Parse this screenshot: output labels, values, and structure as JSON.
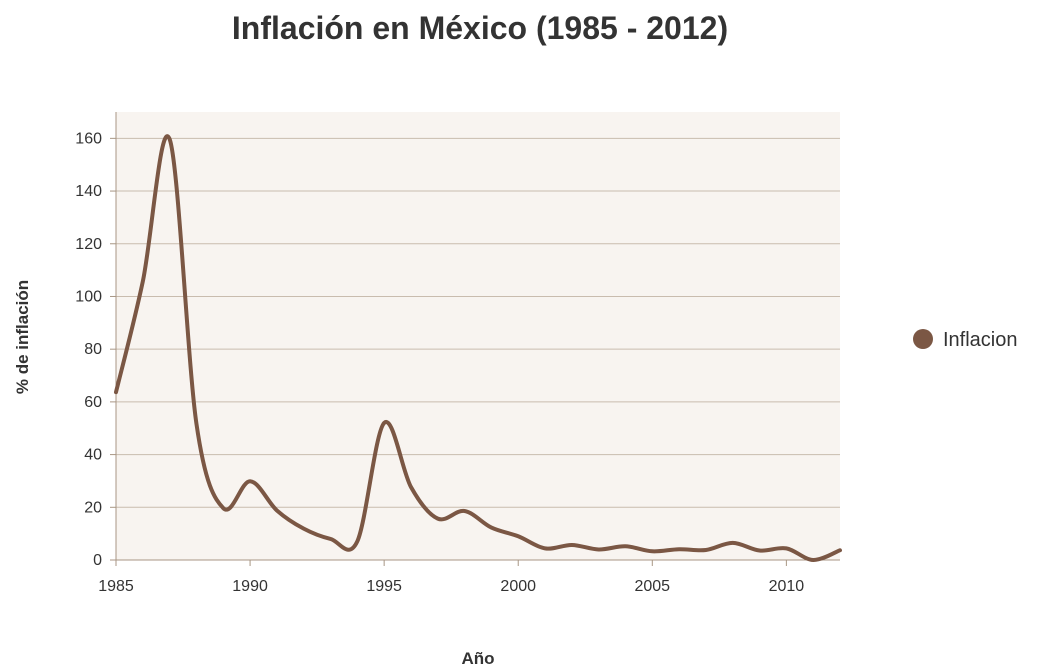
{
  "chart_data": {
    "type": "line",
    "title": "Inflación en México (1985 - 2012)",
    "xlabel": "Año",
    "ylabel": "% de inflación",
    "xlim": [
      1985,
      2012
    ],
    "ylim": [
      0,
      170
    ],
    "x_ticks": [
      1985,
      1990,
      1995,
      2000,
      2005,
      2010
    ],
    "y_ticks": [
      0,
      20,
      40,
      60,
      80,
      100,
      120,
      140,
      160
    ],
    "grid": true,
    "legend_position": "right",
    "colors": {
      "series": "#7b5744",
      "plot_bg": "#f8f4f0",
      "grid": "#c9bcae",
      "axis": "#a89684"
    },
    "series": [
      {
        "name": "Inflacion",
        "x": [
          1985,
          1986,
          1987,
          1988,
          1989,
          1990,
          1991,
          1992,
          1993,
          1994,
          1995,
          1996,
          1997,
          1998,
          1999,
          2000,
          2001,
          2002,
          2003,
          2004,
          2005,
          2006,
          2007,
          2008,
          2009,
          2010,
          2011,
          2012
        ],
        "values": [
          63.7,
          105.7,
          159.7,
          51.7,
          19.7,
          29.9,
          18.8,
          11.9,
          8.0,
          7.1,
          52.0,
          27.7,
          15.7,
          18.6,
          12.3,
          9.0,
          4.4,
          5.7,
          4.0,
          5.2,
          3.3,
          4.1,
          3.8,
          6.5,
          3.6,
          4.4,
          0.0,
          3.7
        ]
      }
    ]
  }
}
